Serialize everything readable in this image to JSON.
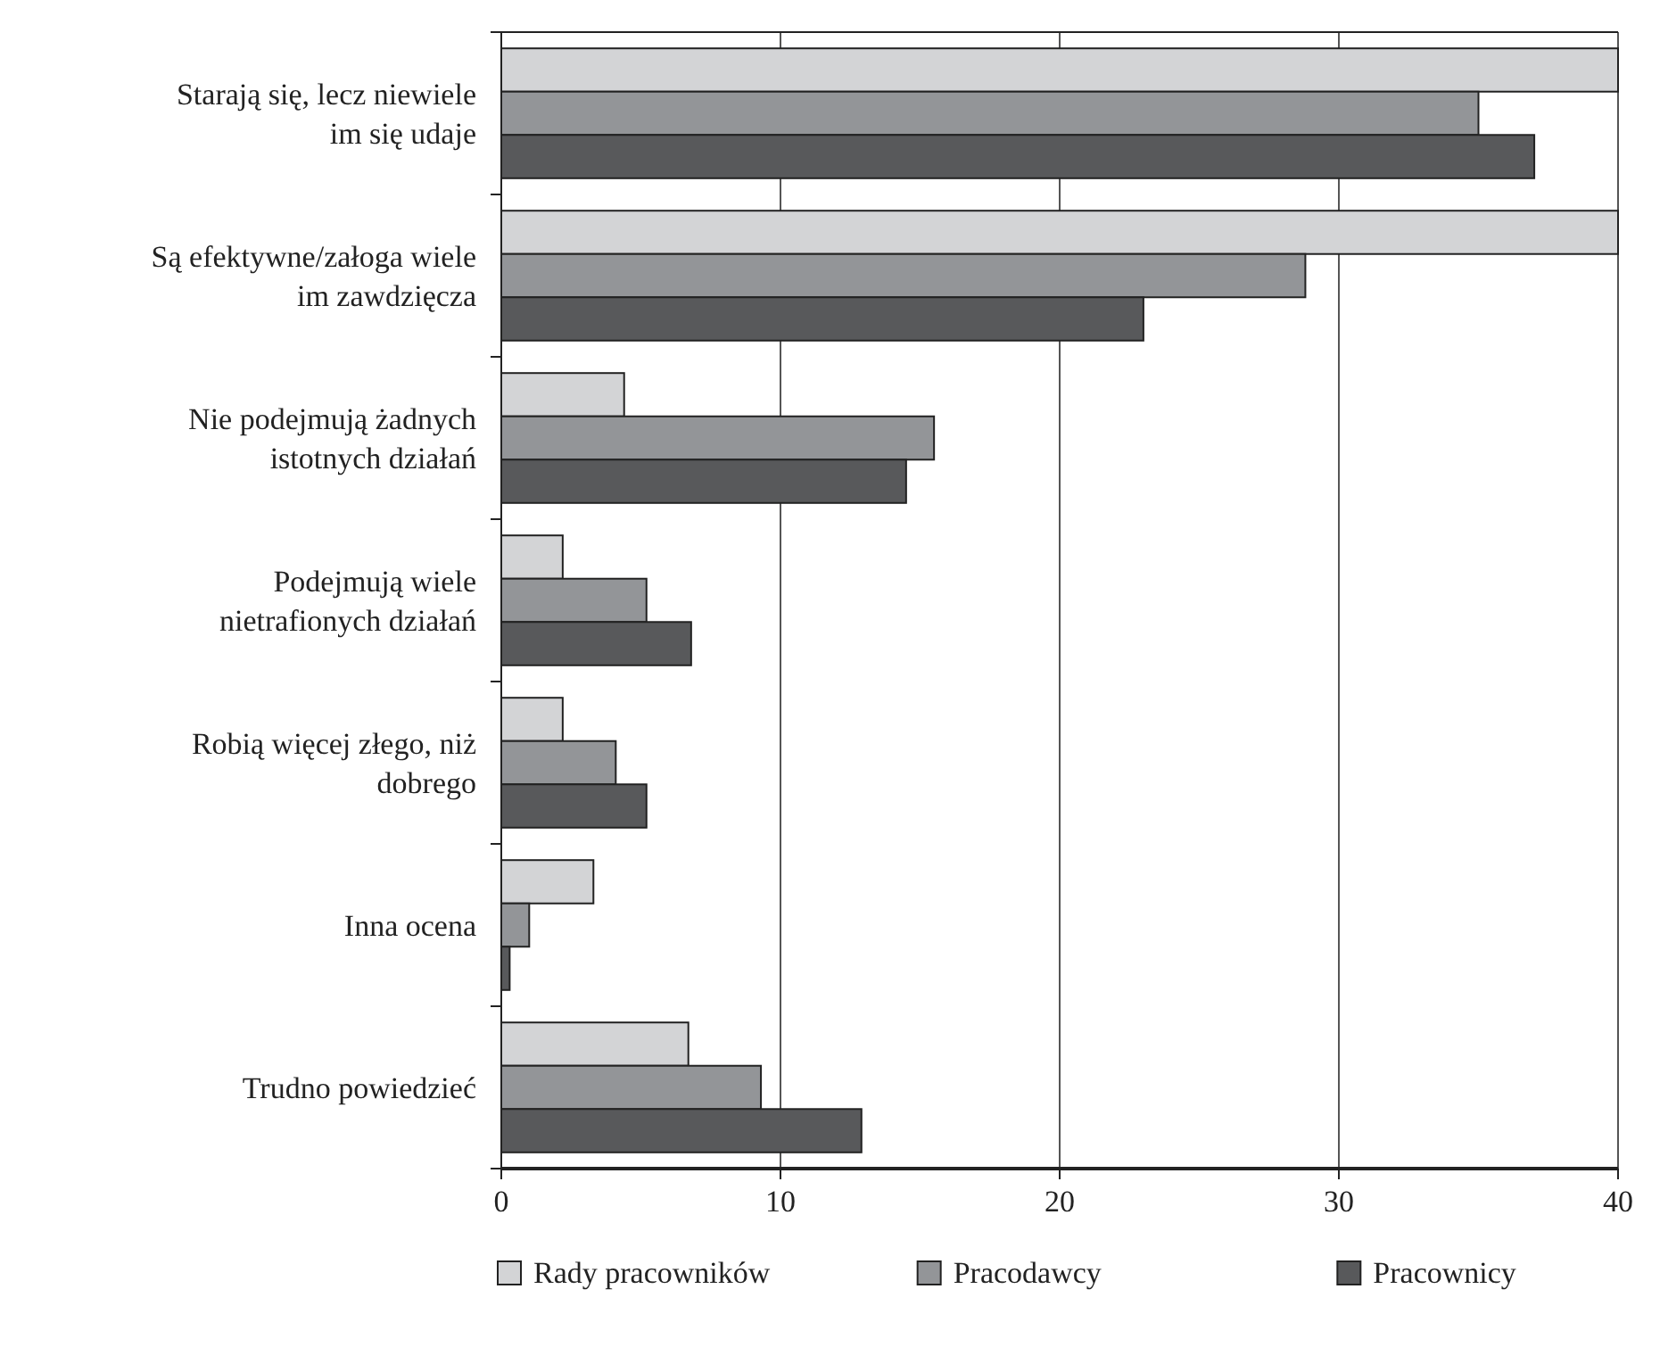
{
  "chart_data": {
    "type": "bar",
    "orientation": "horizontal",
    "categories": [
      "Starają się, lecz niewiele im się udaje",
      "Są efektywne/załoga wiele im zawdzięcza",
      "Nie podejmują żadnych istotnych działań",
      "Podejmują wiele nietrafionych działań",
      "Robią więcej złego, niż dobrego",
      "Inna ocena",
      "Trudno powiedzieć"
    ],
    "series": [
      {
        "name": "Rady pracowników",
        "color": "#d3d4d6",
        "values": [
          40,
          40,
          4.4,
          2.2,
          2.2,
          3.3,
          6.7
        ]
      },
      {
        "name": "Pracodawcy",
        "color": "#939598",
        "values": [
          35,
          28.8,
          15.5,
          5.2,
          4.1,
          1.0,
          9.3
        ]
      },
      {
        "name": "Pracownicy",
        "color": "#58595b",
        "values": [
          37,
          23,
          14.5,
          6.8,
          5.2,
          0.3,
          12.9
        ]
      }
    ],
    "xlim": [
      0,
      40
    ],
    "xticks": [
      0,
      10,
      20,
      30,
      40
    ],
    "grid": "x",
    "legend": "bottom"
  }
}
